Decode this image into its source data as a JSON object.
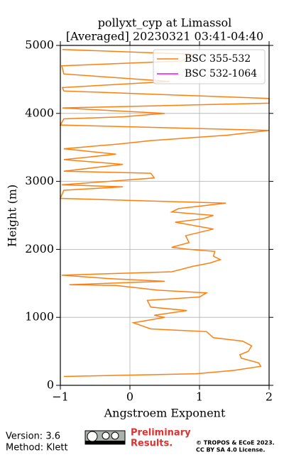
{
  "chart_data": {
    "type": "line",
    "title": "pollyxt_cyp at Limassol",
    "subtitle": "[Averaged] 20230321 03:41-04:40",
    "xlabel": "Angstroem Exponent",
    "ylabel": "Height (m)",
    "xlim": [
      -1,
      2
    ],
    "ylim": [
      0,
      5000
    ],
    "xticks": [
      {
        "value": -1,
        "label": "−1"
      },
      0,
      1,
      2
    ],
    "yticks": [
      0,
      1000,
      2000,
      3000,
      4000,
      5000
    ],
    "grid": true,
    "legend": "upper right",
    "heights": [
      130,
      170,
      220,
      280,
      330,
      400,
      450,
      500,
      580,
      650,
      700,
      790,
      830,
      920,
      1000,
      1030,
      1100,
      1150,
      1250,
      1300,
      1360,
      1400,
      1470,
      1480,
      1530,
      1570,
      1620,
      1670,
      1750,
      1800,
      1850,
      1900,
      1970,
      2000,
      2030,
      2100,
      2200,
      2300,
      2400,
      2450,
      2500,
      2550,
      2600,
      2680,
      2750,
      2870,
      2920,
      2950,
      3050,
      3120,
      3150,
      3250,
      3320,
      3400,
      3480,
      3550,
      3600,
      3680,
      3750,
      3830,
      3920,
      3950,
      4000,
      4080,
      4150,
      4220,
      4330,
      4380,
      4470,
      4580,
      4700,
      4770,
      4870,
      4940
    ],
    "series": [
      {
        "name": "BSC 355-532",
        "color": "#ff7f0e",
        "values": [
          -0.95,
          0.95,
          1.5,
          1.88,
          1.85,
          1.6,
          1.58,
          1.7,
          1.75,
          1.62,
          1.2,
          1.1,
          0.3,
          0.05,
          0.5,
          0.35,
          0.82,
          0.3,
          0.25,
          1.0,
          1.1,
          0.4,
          -0.2,
          -0.87,
          0.5,
          -0.3,
          -0.98,
          0.6,
          0.9,
          1.15,
          1.3,
          1.2,
          1.22,
          0.85,
          0.6,
          0.85,
          0.8,
          1.2,
          0.65,
          1.05,
          1.2,
          0.6,
          0.7,
          1.38,
          -1.0,
          -0.95,
          -0.1,
          -0.98,
          0.35,
          0.3,
          -0.95,
          -0.1,
          -0.95,
          -0.2,
          -0.95,
          -0.15,
          0.3,
          1.4,
          2.0,
          -1.0,
          -0.95,
          -0.1,
          0.5,
          -0.97,
          2.0,
          2.0,
          -0.95,
          -0.97,
          0.57,
          -0.95,
          -0.98,
          0.75,
          0.9,
          -0.97
        ]
      },
      {
        "name": "BSC 532-1064",
        "color": "#ff00ff",
        "values": [
          null,
          null,
          null,
          null,
          null,
          null,
          null,
          null,
          null,
          null,
          null,
          null,
          null,
          null,
          null,
          null,
          null,
          null,
          null,
          null,
          null,
          null,
          null,
          null,
          null,
          null,
          null,
          null,
          null,
          null,
          null,
          null,
          null,
          null,
          null,
          null,
          null,
          null,
          null,
          null,
          null,
          null,
          null,
          null,
          null,
          null,
          null,
          null,
          null,
          null,
          null,
          null,
          null,
          null,
          null,
          null,
          null,
          null,
          null,
          null,
          null,
          null,
          null,
          null,
          null,
          null,
          null,
          null,
          null,
          null,
          null,
          null,
          null,
          null
        ]
      }
    ]
  },
  "footer": {
    "version": "Version: 3.6",
    "method": "Method: Klett",
    "preliminary": [
      "Preliminary",
      "Results."
    ],
    "copyright": [
      "© TROPOS & ECoE 2023.",
      "CC BY SA 4.0 License."
    ]
  }
}
